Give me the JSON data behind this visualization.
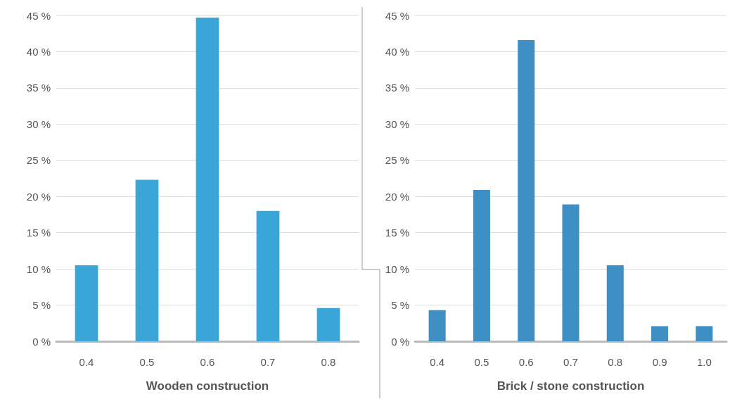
{
  "chart_data": [
    {
      "type": "bar",
      "xlabel": "Wooden construction",
      "categories": [
        "0.4",
        "0.5",
        "0.6",
        "0.7",
        "0.8"
      ],
      "values": [
        10.5,
        22.3,
        44.7,
        18.0,
        4.6
      ],
      "color": "#3aa6d8",
      "ylim": [
        0,
        45
      ],
      "yticks": [
        {
          "value": 0,
          "label": "0 %"
        },
        {
          "value": 5,
          "label": "5 %"
        },
        {
          "value": 10,
          "label": "10 %"
        },
        {
          "value": 15,
          "label": "15 %"
        },
        {
          "value": 20,
          "label": "20 %"
        },
        {
          "value": 25,
          "label": "25 %"
        },
        {
          "value": 30,
          "label": "30 %"
        },
        {
          "value": 35,
          "label": "35 %"
        },
        {
          "value": 40,
          "label": "40 %"
        },
        {
          "value": 45,
          "label": "45 %"
        }
      ],
      "grid": "y"
    },
    {
      "type": "bar",
      "xlabel": "Brick / stone construction",
      "categories": [
        "0.4",
        "0.5",
        "0.6",
        "0.7",
        "0.8",
        "0.9",
        "1.0"
      ],
      "values": [
        4.3,
        20.9,
        41.6,
        18.9,
        10.5,
        2.1,
        2.1
      ],
      "color": "#3d8fc4",
      "ylim": [
        0,
        45
      ],
      "yticks": [
        {
          "value": 0,
          "label": "0 %"
        },
        {
          "value": 5,
          "label": "5 %"
        },
        {
          "value": 10,
          "label": "10 %"
        },
        {
          "value": 15,
          "label": "15 %"
        },
        {
          "value": 20,
          "label": "20 %"
        },
        {
          "value": 25,
          "label": "25 %"
        },
        {
          "value": 30,
          "label": "30 %"
        },
        {
          "value": 35,
          "label": "35 %"
        },
        {
          "value": 40,
          "label": "40 %"
        },
        {
          "value": 45,
          "label": "45 %"
        }
      ],
      "grid": "y"
    }
  ]
}
